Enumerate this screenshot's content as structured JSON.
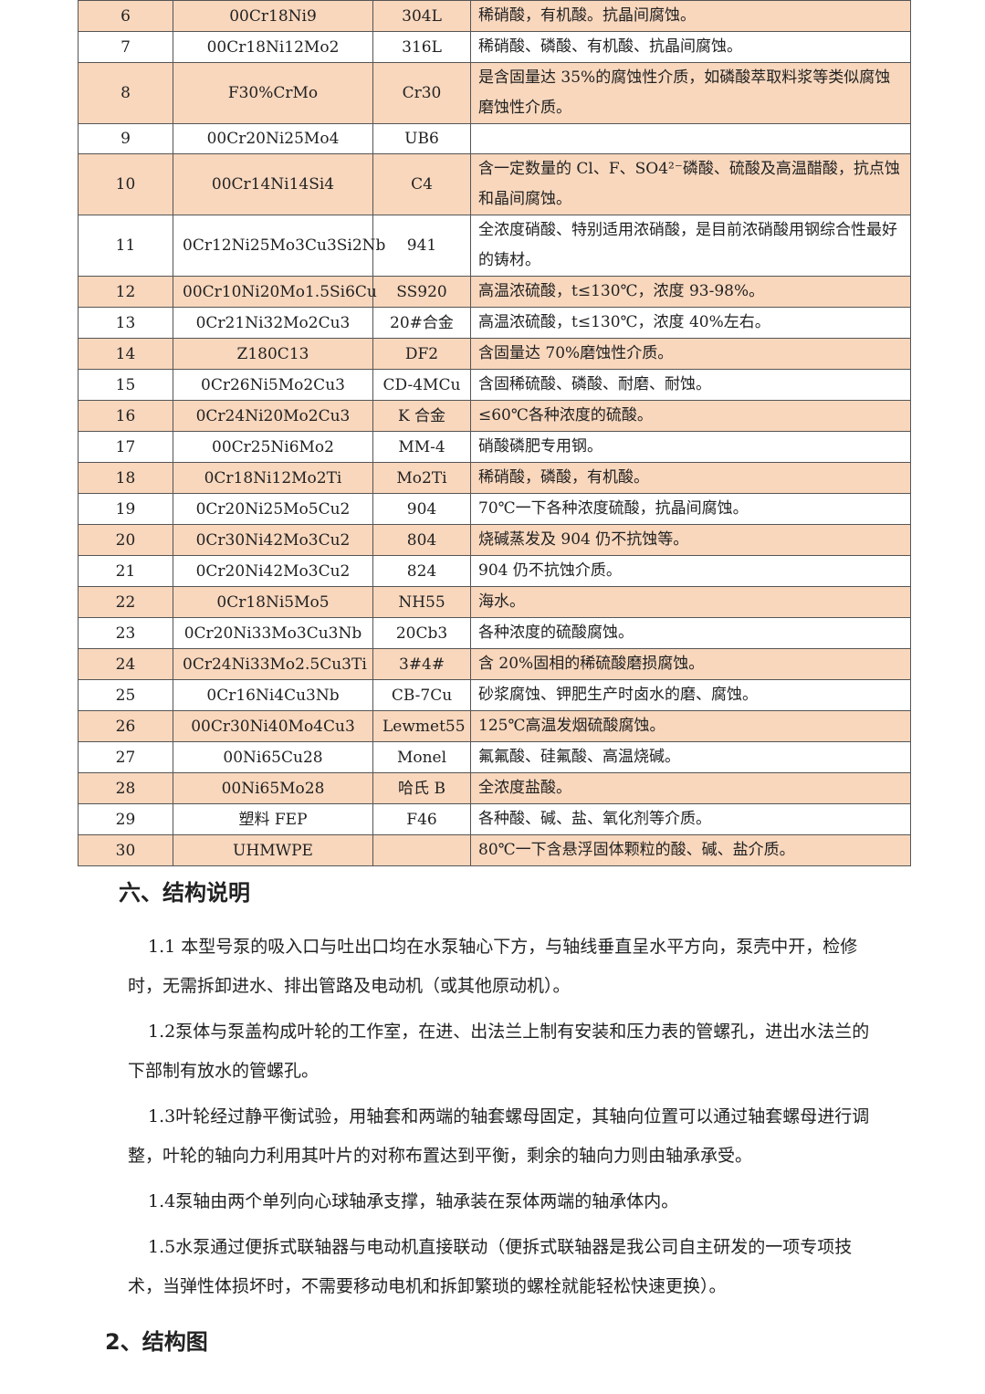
{
  "table": {
    "fill_color": "#f8d7bd",
    "rows": [
      {
        "no": "6",
        "grade": "00Cr18Ni9",
        "code": "304L",
        "use": "稀硝酸，有机酸。抗晶间腐蚀。"
      },
      {
        "no": "7",
        "grade": "00Cr18Ni12Mo2",
        "code": "316L",
        "use": "稀硝酸、磷酸、有机酸、抗晶间腐蚀。"
      },
      {
        "no": "8",
        "grade": "F30%CrMo",
        "code": "Cr30",
        "use": "是含固量达 35%的腐蚀性介质，如磷酸萃取料浆等类似腐蚀磨蚀性介质。"
      },
      {
        "no": "9",
        "grade": "00Cr20Ni25Mo4",
        "code": "UB6",
        "use": ""
      },
      {
        "no": "10",
        "grade": "00Cr14Ni14Si4",
        "code": "C4",
        "use": "含一定数量的 Cl、F、SO4²⁻磷酸、硫酸及高温醋酸，抗点蚀和晶间腐蚀。"
      },
      {
        "no": "11",
        "grade": "0Cr12Ni25Mo3Cu3Si2Nb",
        "code": "941",
        "use": "全浓度硝酸、特别适用浓硝酸，是目前浓硝酸用钢综合性最好的铸材。"
      },
      {
        "no": "12",
        "grade": "00Cr10Ni20Mo1.5Si6Cu",
        "code": "SS920",
        "use": "高温浓硫酸，t≤130℃，浓度 93-98%。"
      },
      {
        "no": "13",
        "grade": "0Cr21Ni32Mo2Cu3",
        "code": "20#合金",
        "use": "高温浓硫酸，t≤130℃，浓度 40%左右。"
      },
      {
        "no": "14",
        "grade": "Z180C13",
        "code": "DF2",
        "use": "含固量达 70%磨蚀性介质。"
      },
      {
        "no": "15",
        "grade": "0Cr26Ni5Mo2Cu3",
        "code": "CD-4MCu",
        "use": "含固稀硫酸、磷酸、耐磨、耐蚀。"
      },
      {
        "no": "16",
        "grade": "0Cr24Ni20Mo2Cu3",
        "code": "K 合金",
        "use": "≤60℃各种浓度的硫酸。"
      },
      {
        "no": "17",
        "grade": "00Cr25Ni6Mo2",
        "code": "MM-4",
        "use": "硝酸磷肥专用钢。"
      },
      {
        "no": "18",
        "grade": "0Cr18Ni12Mo2Ti",
        "code": "Mo2Ti",
        "use": "稀硝酸，磷酸，有机酸。"
      },
      {
        "no": "19",
        "grade": "0Cr20Ni25Mo5Cu2",
        "code": "904",
        "use": "70℃一下各种浓度硫酸，抗晶间腐蚀。"
      },
      {
        "no": "20",
        "grade": "0Cr30Ni42Mo3Cu2",
        "code": "804",
        "use": "烧碱蒸发及 904 仍不抗蚀等。"
      },
      {
        "no": "21",
        "grade": "0Cr20Ni42Mo3Cu2",
        "code": "824",
        "use": "904 仍不抗蚀介质。"
      },
      {
        "no": "22",
        "grade": "0Cr18Ni5Mo5",
        "code": "NH55",
        "use": "海水。"
      },
      {
        "no": "23",
        "grade": "0Cr20Ni33Mo3Cu3Nb",
        "code": "20Cb3",
        "use": "各种浓度的硫酸腐蚀。"
      },
      {
        "no": "24",
        "grade": "0Cr24Ni33Mo2.5Cu3Ti",
        "code": "3#4#",
        "use": "含 20%固相的稀硫酸磨损腐蚀。"
      },
      {
        "no": "25",
        "grade": "0Cr16Ni4Cu3Nb",
        "code": "CB-7Cu",
        "use": "砂浆腐蚀、钾肥生产时卤水的磨、腐蚀。"
      },
      {
        "no": "26",
        "grade": "00Cr30Ni40Mo4Cu3",
        "code": "Lewmet55",
        "use": "125℃高温发烟硫酸腐蚀。"
      },
      {
        "no": "27",
        "grade": "00Ni65Cu28",
        "code": "Monel",
        "use": "氟氟酸、硅氟酸、高温烧碱。"
      },
      {
        "no": "28",
        "grade": "00Ni65Mo28",
        "code": "哈氏 B",
        "use": "全浓度盐酸。"
      },
      {
        "no": "29",
        "grade": "塑料 FEP",
        "code": "F46",
        "use": "各种酸、碱、盐、氧化剂等介质。"
      },
      {
        "no": "30",
        "grade": "UHMWPE",
        "code": "",
        "use": "80℃一下含悬浮固体颗粒的酸、碱、盐介质。"
      }
    ]
  },
  "section": {
    "title": "六、结构说明",
    "paragraphs": [
      "1.1 本型号泵的吸入口与吐出口均在水泵轴心下方，与轴线垂直呈水平方向，泵壳中开，检修时，无需拆卸进水、排出管路及电动机（或其他原动机）。",
      "1.2泵体与泵盖构成叶轮的工作室，在进、出法兰上制有安装和压力表的管螺孔，进出水法兰的下部制有放水的管螺孔。",
      "1.3叶轮经过静平衡试验，用轴套和两端的轴套螺母固定，其轴向位置可以通过轴套螺母进行调整，叶轮的轴向力利用其叶片的对称布置达到平衡，剩余的轴向力则由轴承承受。",
      "1.4泵轴由两个单列向心球轴承支撑，轴承装在泵体两端的轴承体内。",
      "1.5水泵通过便拆式联轴器与电动机直接联动（便拆式联轴器是我公司自主研发的一项专项技术，当弹性体损坏时，不需要移动电机和拆卸繁琐的螺栓就能轻松快速更换）。"
    ],
    "subtitle": "2、结构图"
  }
}
